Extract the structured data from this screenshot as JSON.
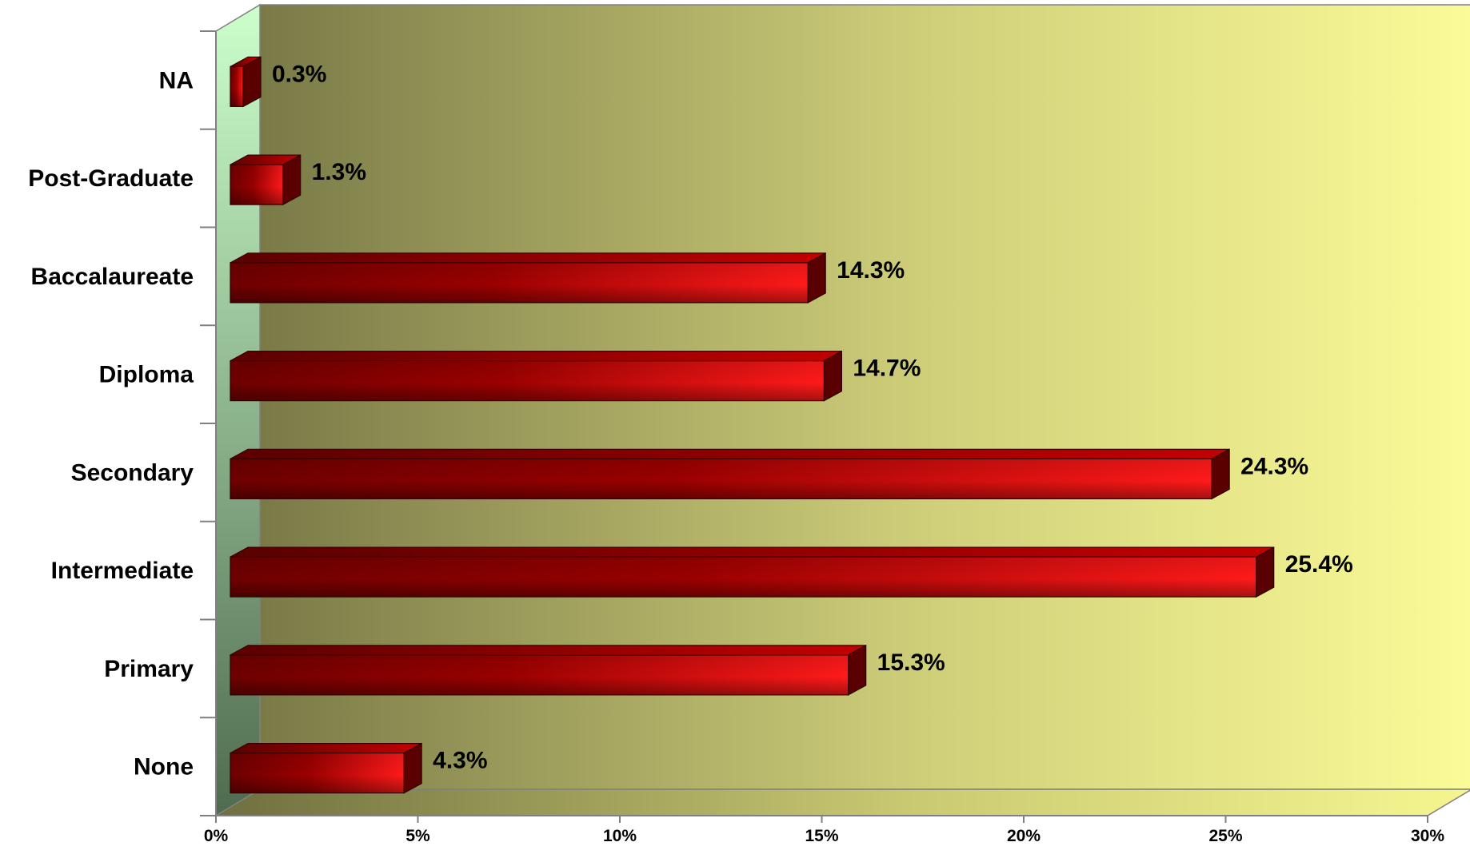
{
  "chart_data": {
    "type": "bar",
    "orientation": "horizontal",
    "style": "3d",
    "categories": [
      "NA",
      "Post-Graduate",
      "Baccalaureate",
      "Diploma",
      "Secondary",
      "Intermediate",
      "Primary",
      "None"
    ],
    "values": [
      0.3,
      1.3,
      14.3,
      14.7,
      24.3,
      25.4,
      15.3,
      4.3
    ],
    "data_labels": [
      "0.3%",
      "1.3%",
      "14.3%",
      "14.7%",
      "24.3%",
      "25.4%",
      "15.3%",
      "4.3%"
    ],
    "unit": "%",
    "xlim": [
      0,
      30
    ],
    "x_ticks": [
      0,
      5,
      10,
      15,
      20,
      25,
      30
    ],
    "x_tick_labels": [
      "0%",
      "5%",
      "10%",
      "15%",
      "20%",
      "25%",
      "30%"
    ],
    "grid": false,
    "legend": "none",
    "title": "",
    "xlabel": "",
    "ylabel": "",
    "colors": {
      "bar_dark": "#6e0000",
      "bar_bright": "#ff1a1a",
      "bar_top": "#c40000",
      "bar_side": "#5a0000",
      "back_wall_left": "#7a7a48",
      "back_wall_right": "#fbfb98",
      "side_wall_top": "#ccffcc",
      "side_wall_bottom": "#4f6b4f"
    }
  }
}
